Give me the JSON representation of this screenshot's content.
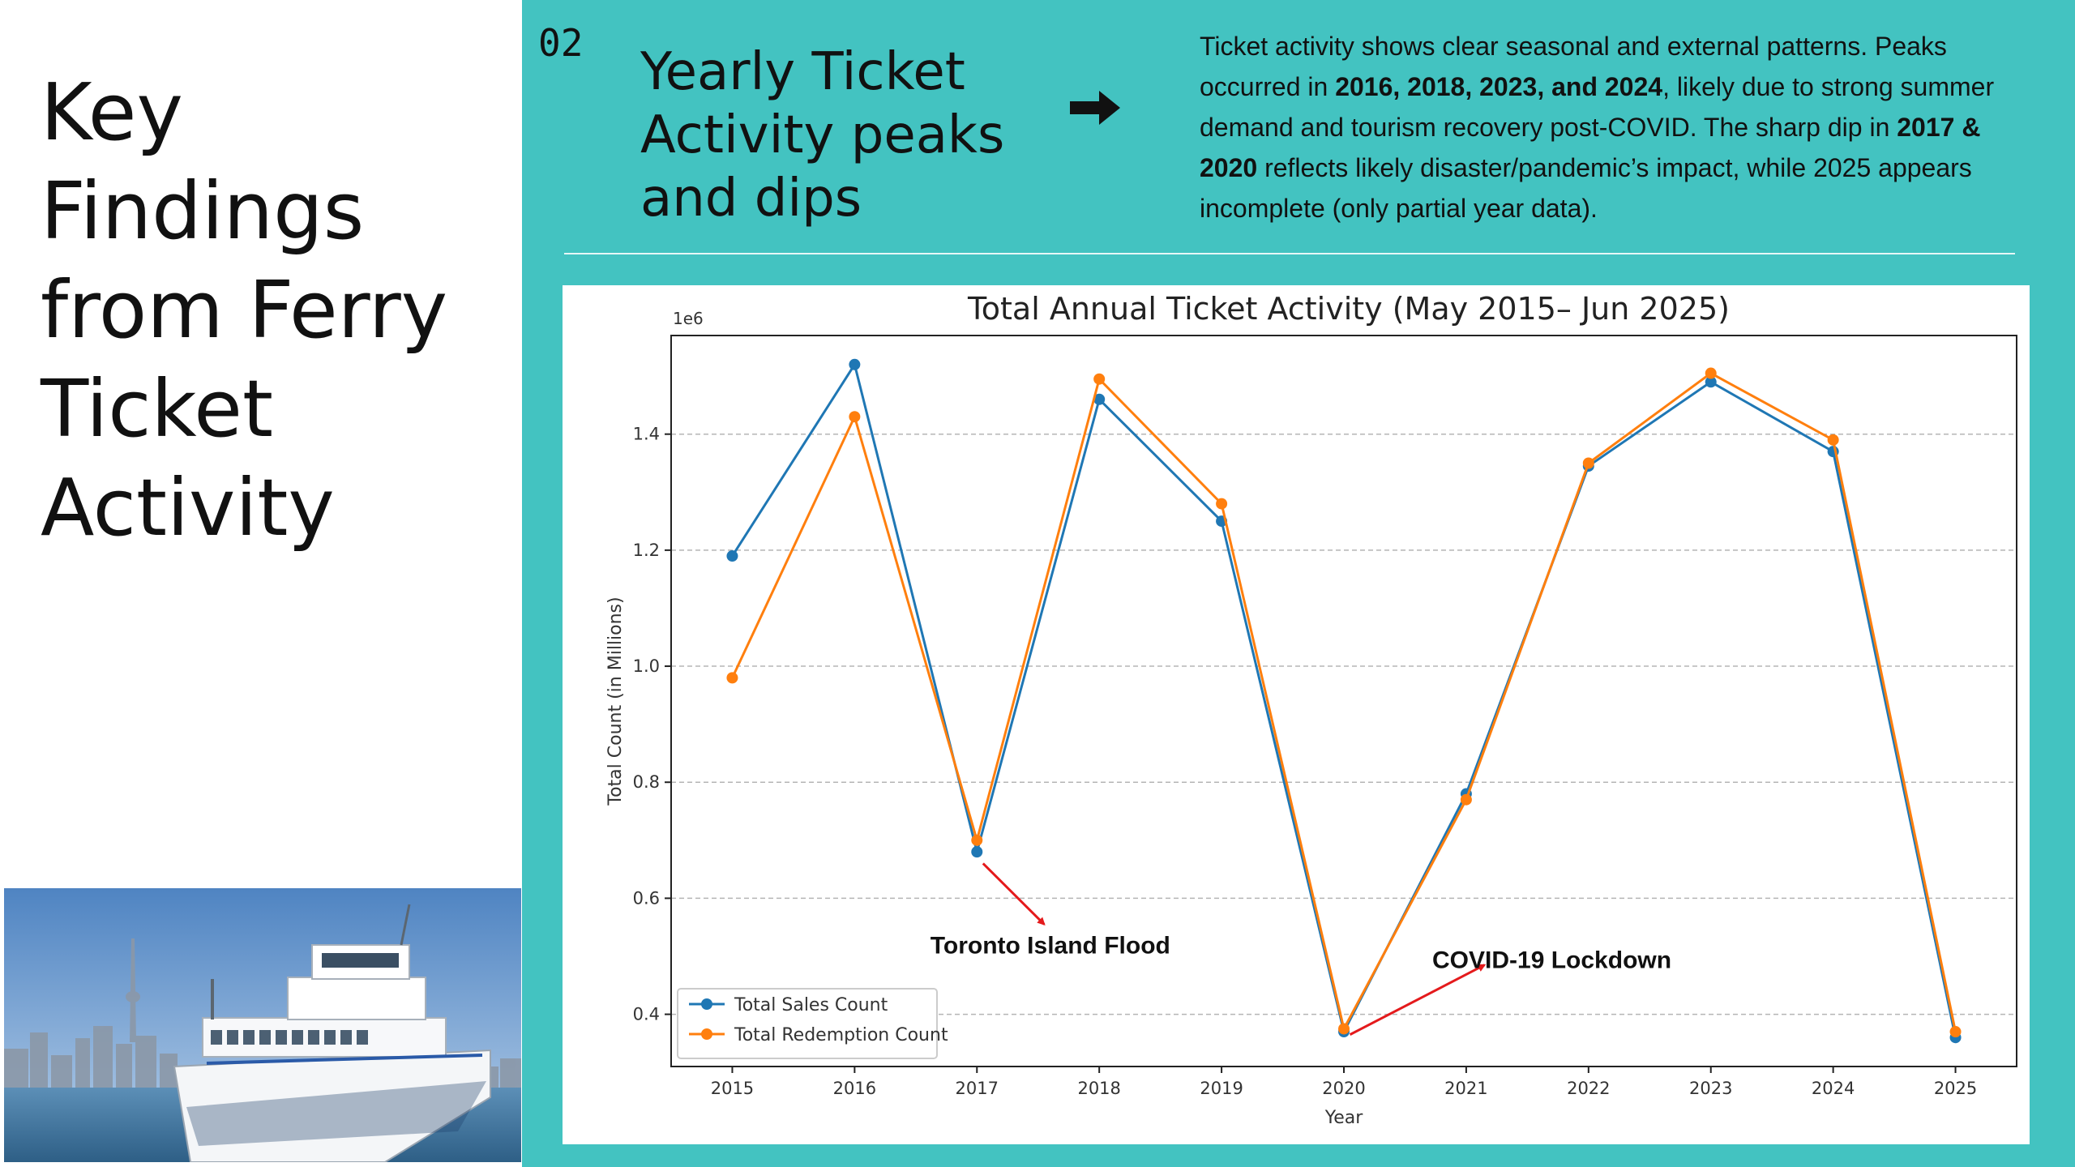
{
  "slide": {
    "title": "Key Findings from Ferry Ticket Activity",
    "number": "02",
    "section_title": "Yearly Ticket Activity peaks and dips",
    "summary_parts": [
      {
        "text": "Ticket activity shows clear seasonal and external patterns. Peaks occurred in ",
        "bold": false
      },
      {
        "text": "2016, 2018, 2023, and 2024",
        "bold": true
      },
      {
        "text": ", likely due to strong summer demand and tourism recovery post-COVID. The sharp dip in ",
        "bold": false
      },
      {
        "text": "2017 & 2020",
        "bold": true
      },
      {
        "text": " reflects likely disaster/pandemic’s impact, while 2025 appears incomplete (only partial year data).",
        "bold": false
      }
    ]
  },
  "icons": {
    "arrow": "right-arrow-icon",
    "photo": "ferry-photo"
  },
  "colors": {
    "teal_panel": "#43c3c1",
    "sales": "#1f77b4",
    "redemption": "#ff7f0e",
    "annotation_arrow": "#e41a1c"
  },
  "chart_data": {
    "type": "line",
    "title": "Total Annual Ticket Activity (May 2015– Jun 2025)",
    "xlabel": "Year",
    "ylabel": "Total Count (in Millions)",
    "y_offset_label": "1e6",
    "x": [
      2015,
      2016,
      2017,
      2018,
      2019,
      2020,
      2021,
      2022,
      2023,
      2024,
      2025
    ],
    "y_ticks": [
      "0.4",
      "0.6",
      "0.8",
      "1.0",
      "1.2",
      "1.4"
    ],
    "ylim": [
      0.31,
      1.57
    ],
    "xlim": [
      2014.5,
      2025.5
    ],
    "grid": "horizontal dashed",
    "legend_position": "lower-left",
    "series": [
      {
        "name": "Total Sales Count",
        "color": "#1f77b4",
        "values": [
          1.19,
          1.52,
          0.68,
          1.46,
          1.25,
          0.37,
          0.78,
          1.345,
          1.49,
          1.37,
          0.36
        ]
      },
      {
        "name": "Total Redemption Count",
        "color": "#ff7f0e",
        "values": [
          0.98,
          1.43,
          0.7,
          1.495,
          1.28,
          0.375,
          0.77,
          1.35,
          1.505,
          1.39,
          0.37
        ]
      }
    ],
    "annotations": [
      {
        "text": "Toronto Island Flood",
        "from": [
          2017.05,
          0.66
        ],
        "to": [
          2017.55,
          0.555
        ],
        "text_at": [
          2017.6,
          0.505
        ]
      },
      {
        "text": "COVID-19 Lockdown",
        "from": [
          2020.05,
          0.365
        ],
        "to": [
          2021.15,
          0.485
        ],
        "text_at": [
          2021.7,
          0.48
        ]
      }
    ]
  }
}
